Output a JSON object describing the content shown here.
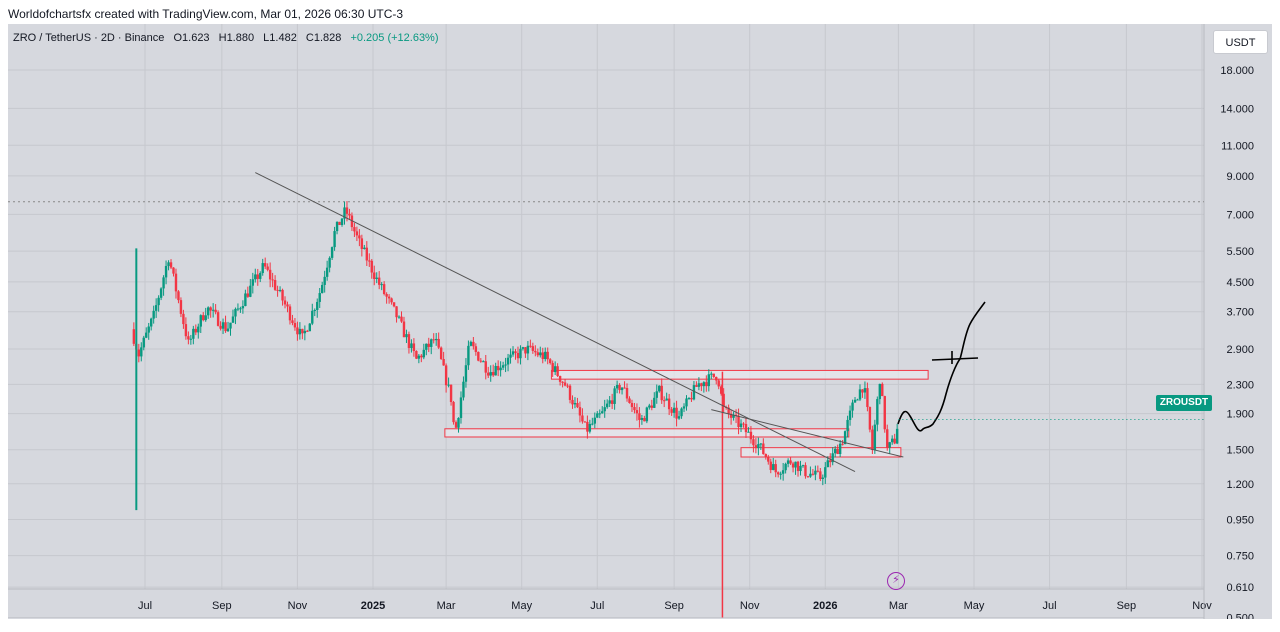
{
  "header": {
    "attribution": "Worldofchartsfx created with TradingView.com, Mar 01, 2026 06:30 UTC-3"
  },
  "legend": {
    "symbol": "ZRO / TetherUS · 2D · Binance",
    "open": "O1.623",
    "high": "H1.880",
    "low": "L1.482",
    "close": "C1.828",
    "change": "+0.205 (+12.63%)"
  },
  "currency": "USDT",
  "price_tag": "ZROUSDT",
  "event_icon": "lightning-icon",
  "colors": {
    "up": "#089981",
    "down": "#f23645",
    "background": "#d6d8de",
    "trendline": "#555555",
    "zone_fill": "#e8e8ee",
    "zone_border": "#f23645",
    "event": "#9c27b0",
    "drawing": "#000000"
  },
  "chart_data": {
    "type": "candlestick",
    "scale": "log",
    "y_ticks": [
      "18.000",
      "14.000",
      "11.000",
      "9.000",
      "7.000",
      "5.500",
      "4.500",
      "3.700",
      "2.900",
      "2.300",
      "1.900",
      "1.500",
      "1.200",
      "0.950",
      "0.750",
      "0.610",
      "0.500"
    ],
    "x_ticks": [
      "Jul",
      "Sep",
      "Nov",
      "2025",
      "Mar",
      "May",
      "Jul",
      "Sep",
      "Nov",
      "2026",
      "Mar",
      "May",
      "Jul",
      "Sep",
      "Nov"
    ],
    "bold_x_ticks": [
      "2025",
      "2026"
    ],
    "ylim": [
      0.5,
      24
    ],
    "dotted_level": 7.6,
    "last_price": 1.828,
    "series": [
      {
        "name": "ZRO / TetherUS",
        "anchors": [
          [
            "2024-06-20",
            3.3
          ],
          [
            "2024-06-26",
            2.8
          ],
          [
            "2024-07-08",
            3.6
          ],
          [
            "2024-07-20",
            5.3
          ],
          [
            "2024-08-05",
            3.0
          ],
          [
            "2024-08-20",
            3.8
          ],
          [
            "2024-09-05",
            3.3
          ],
          [
            "2024-09-20",
            4.1
          ],
          [
            "2024-10-05",
            5.0
          ],
          [
            "2024-10-20",
            4.0
          ],
          [
            "2024-11-05",
            3.1
          ],
          [
            "2024-11-20",
            4.3
          ],
          [
            "2024-12-01",
            6.2
          ],
          [
            "2024-12-10",
            7.2
          ],
          [
            "2024-12-20",
            5.9
          ],
          [
            "2025-01-05",
            4.5
          ],
          [
            "2025-01-20",
            3.6
          ],
          [
            "2025-02-05",
            2.7
          ],
          [
            "2025-02-20",
            3.1
          ],
          [
            "2025-03-05",
            2.1
          ],
          [
            "2025-03-08",
            1.65
          ],
          [
            "2025-03-20",
            3.0
          ],
          [
            "2025-04-05",
            2.5
          ],
          [
            "2025-04-20",
            2.7
          ],
          [
            "2025-05-05",
            2.9
          ],
          [
            "2025-05-20",
            2.75
          ],
          [
            "2025-06-05",
            2.3
          ],
          [
            "2025-06-22",
            1.7
          ],
          [
            "2025-07-05",
            1.9
          ],
          [
            "2025-07-20",
            2.3
          ],
          [
            "2025-08-05",
            1.8
          ],
          [
            "2025-08-20",
            2.2
          ],
          [
            "2025-09-05",
            1.85
          ],
          [
            "2025-09-20",
            2.3
          ],
          [
            "2025-10-06",
            2.45
          ],
          [
            "2025-10-11",
            1.95
          ],
          [
            "2025-10-25",
            1.75
          ],
          [
            "2025-11-08",
            1.55
          ],
          [
            "2025-11-22",
            1.3
          ],
          [
            "2025-12-05",
            1.4
          ],
          [
            "2025-12-15",
            1.3
          ],
          [
            "2025-12-28",
            1.25
          ],
          [
            "2026-01-05",
            1.4
          ],
          [
            "2026-01-15",
            1.6
          ],
          [
            "2026-01-25",
            2.1
          ],
          [
            "2026-02-01",
            2.3
          ],
          [
            "2026-02-08",
            1.5
          ],
          [
            "2026-02-14",
            2.4
          ],
          [
            "2026-02-20",
            1.5
          ],
          [
            "2026-02-26",
            1.6
          ],
          [
            "2026-03-01",
            1.828
          ]
        ]
      }
    ],
    "trendlines": [
      {
        "from": [
          "2024-09-28",
          9.2
        ],
        "to": [
          "2026-01-25",
          1.3
        ]
      },
      {
        "from": [
          "2025-10-01",
          1.95
        ],
        "to": [
          "2026-03-05",
          1.43
        ]
      }
    ],
    "zones": [
      {
        "from": "2025-05-25",
        "to": "2026-03-25",
        "low": 2.38,
        "high": 2.52
      },
      {
        "from": "2025-02-28",
        "to": "2026-01-20",
        "low": 1.63,
        "high": 1.72
      },
      {
        "from": "2025-10-25",
        "to": "2026-03-03",
        "low": 1.43,
        "high": 1.52
      }
    ],
    "spikes": [
      {
        "date": "2024-06-24",
        "low": 1.01,
        "high": 5.6
      },
      {
        "date": "2025-10-10",
        "low": 0.5,
        "high": 2.5
      }
    ]
  }
}
